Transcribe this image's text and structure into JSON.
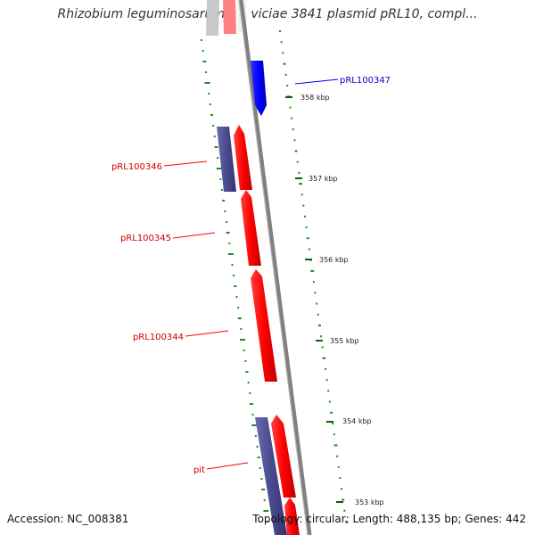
{
  "title": "Rhizobium leguminosarum bv. viciae 3841 plasmid pRL10, compl...",
  "footer": {
    "accession": "Accession: NC_008381",
    "stats": "Topology: circular; Length: 488,135 bp; Genes: 442"
  },
  "ticks": [
    "358 kbp",
    "357 kbp",
    "356 kbp",
    "355 kbp",
    "354 kbp",
    "353 kbp"
  ],
  "genes": [
    "pRL100347",
    "pRL100346",
    "pRL100345",
    "pRL100344",
    "pit"
  ],
  "colors": {
    "forward_gene": "#ff0000",
    "reverse_gene_blue": "#0000ff",
    "reverse_gene_purple": "#4a4a8f",
    "backbone": "#808080",
    "gc_dots": "#228b22",
    "label_blue": "#0000cc",
    "label_red": "#cc0000"
  }
}
